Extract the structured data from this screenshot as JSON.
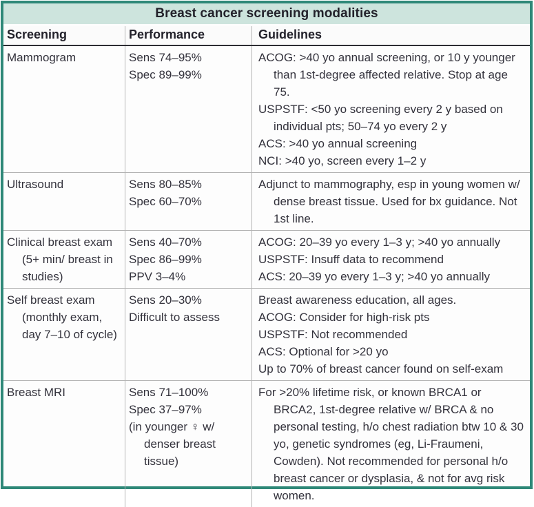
{
  "title": "Breast cancer screening modalities",
  "colors": {
    "frame_border": "#2e8878",
    "title_background": "#cde4dd",
    "text": "#33323c",
    "grid_line": "#b3b3b3",
    "header_rule": "#2d2d33"
  },
  "table": {
    "columns": [
      "Screening",
      "Performance",
      "Guidelines"
    ],
    "rows": [
      {
        "screening": [
          "Mammogram"
        ],
        "performance": [
          "Sens 74–95%",
          "Spec 89–99%"
        ],
        "guidelines": [
          "ACOG: >40 yo annual screening, or 10 y younger than 1st-degree affected relative. Stop at age 75.",
          "USPSTF: <50 yo screening every 2 y based on individual pts; 50–74 yo every 2 y",
          "ACS: >40 yo annual screening",
          "NCI: >40 yo, screen every 1–2 y"
        ]
      },
      {
        "screening": [
          "Ultrasound"
        ],
        "performance": [
          "Sens 80–85%",
          "Spec 60–70%"
        ],
        "guidelines": [
          "Adjunct to mammography, esp in young women w/ dense breast tissue. Used for bx guidance. Not 1st line."
        ]
      },
      {
        "screening": [
          "Clinical breast exam (5+ min/ breast in studies)"
        ],
        "performance": [
          "Sens 40–70%",
          "Spec 86–99%",
          "PPV 3–4%"
        ],
        "guidelines": [
          "ACOG: 20–39 yo every 1–3 y; >40 yo annually",
          "USPSTF: Insuff data to recommend",
          "ACS: 20–39 yo every 1–3 y; >40 yo annually"
        ]
      },
      {
        "screening": [
          "Self breast exam (monthly exam, day 7–10 of cycle)"
        ],
        "performance": [
          "Sens 20–30%",
          "Difficult to assess"
        ],
        "guidelines": [
          "Breast awareness education, all ages.",
          "ACOG: Consider for high-risk pts",
          "USPSTF: Not recommended",
          "ACS: Optional for >20 yo",
          "Up to 70% of breast cancer found on self-exam"
        ]
      },
      {
        "screening": [
          "Breast MRI"
        ],
        "performance": [
          "Sens 71–100%",
          "Spec 37–97%",
          "(in younger ♀ w/ denser breast tissue)"
        ],
        "guidelines": [
          "For >20% lifetime risk, or known BRCA1 or BRCA2, 1st-degree relative w/ BRCA & no personal testing, h/o chest radiation btw 10 & 30 yo, genetic syndromes (eg, Li-Fraumeni, Cowden). Not recommended for personal h/o breast cancer or dysplasia, & not for avg risk women."
        ]
      }
    ]
  }
}
